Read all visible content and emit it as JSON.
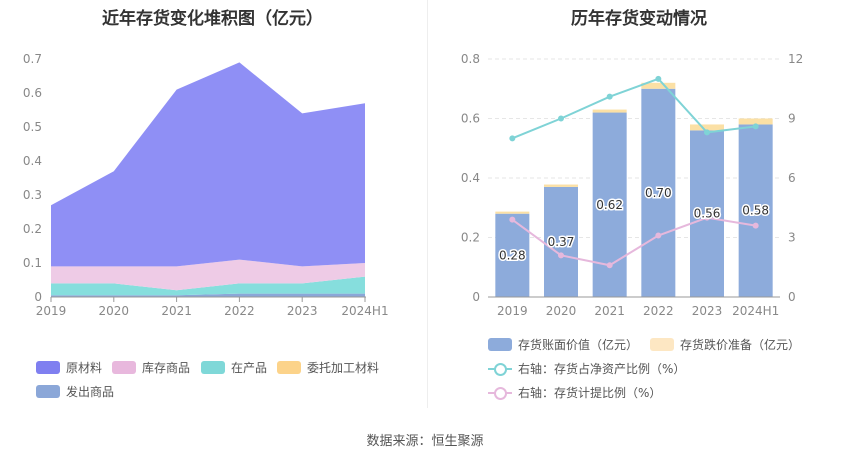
{
  "left_title": "近年存货变化堆积图（亿元）",
  "right_title": "历年存货变动情况",
  "source": "数据来源：恒生聚源",
  "colors": {
    "raw": "#8f8ff5",
    "finished": "#eecbe6",
    "wip": "#86dedd",
    "consigned": "#fcd58f",
    "shipped": "#8ba7d8",
    "bar": "#8dabdb",
    "reserve": "#fbe0a5",
    "line1": "#7fd3d6",
    "line2": "#e6b8dc"
  },
  "legend_left": [
    {
      "label": "原材料",
      "color": "#7f7ff0"
    },
    {
      "label": "库存商品",
      "color": "#e8b8dd"
    },
    {
      "label": "在产品",
      "color": "#7fd8d8"
    },
    {
      "label": "委托加工材料",
      "color": "#fcd38a"
    },
    {
      "label": "发出商品",
      "color": "#8ba7d8"
    }
  ],
  "legend_right": [
    {
      "label": "存货账面价值（亿元）",
      "color": "#8dabdb",
      "type": "swatch"
    },
    {
      "label": "存货跌价准备（亿元）",
      "color": "#fde7c3",
      "type": "swatch"
    },
    {
      "label": "右轴：存货占净资产比例（%）",
      "color": "#7fd3d6",
      "type": "ring"
    },
    {
      "label": "右轴：存货计提比例（%）",
      "color": "#e6b8dc",
      "type": "ring"
    }
  ],
  "chart_data": [
    {
      "type": "area",
      "title": "近年存货变化堆积图（亿元）",
      "categories": [
        "2019",
        "2020",
        "2021",
        "2022",
        "2023",
        "2024H1"
      ],
      "ylim": [
        0,
        0.7
      ],
      "yticks": [
        "0",
        "0.1",
        "0.2",
        "0.3",
        "0.4",
        "0.5",
        "0.6",
        "0.7"
      ],
      "stacked": true,
      "series": [
        {
          "name": "发出商品",
          "values": [
            0.005,
            0.005,
            0.005,
            0.01,
            0.01,
            0.01
          ]
        },
        {
          "name": "在产品",
          "values": [
            0.035,
            0.035,
            0.015,
            0.03,
            0.03,
            0.05
          ]
        },
        {
          "name": "委托加工材料",
          "values": [
            0,
            0,
            0,
            0,
            0,
            0
          ]
        },
        {
          "name": "库存商品",
          "values": [
            0.05,
            0.05,
            0.07,
            0.07,
            0.05,
            0.04
          ]
        },
        {
          "name": "原材料",
          "values": [
            0.18,
            0.28,
            0.52,
            0.58,
            0.45,
            0.47
          ]
        }
      ],
      "totals": [
        0.27,
        0.37,
        0.61,
        0.69,
        0.54,
        0.57
      ]
    },
    {
      "type": "bar",
      "title": "历年存货变动情况",
      "categories": [
        "2019",
        "2020",
        "2021",
        "2022",
        "2023",
        "2024H1"
      ],
      "ylim": [
        0,
        0.8
      ],
      "yticks": [
        "0",
        "0.2",
        "0.4",
        "0.6",
        "0.8"
      ],
      "y2lim": [
        0,
        12
      ],
      "y2ticks": [
        "0",
        "3",
        "6",
        "9",
        "12"
      ],
      "series": [
        {
          "name": "存货账面价值（亿元）",
          "values": [
            0.28,
            0.37,
            0.62,
            0.7,
            0.56,
            0.58
          ],
          "labels": [
            "0.28",
            "0.37",
            "0.62",
            "0.70",
            "0.56",
            "0.58"
          ]
        },
        {
          "name": "存货跌价准备（亿元）",
          "values": [
            0.007,
            0.008,
            0.01,
            0.02,
            0.02,
            0.02
          ]
        },
        {
          "name": "右轴：存货占净资产比例（%）",
          "axis": "right",
          "values": [
            8.0,
            9.0,
            10.1,
            11.0,
            8.3,
            8.6
          ]
        },
        {
          "name": "右轴：存货计提比例（%）",
          "axis": "right",
          "values": [
            3.9,
            2.1,
            1.6,
            3.1,
            4.0,
            3.6
          ]
        }
      ]
    }
  ]
}
